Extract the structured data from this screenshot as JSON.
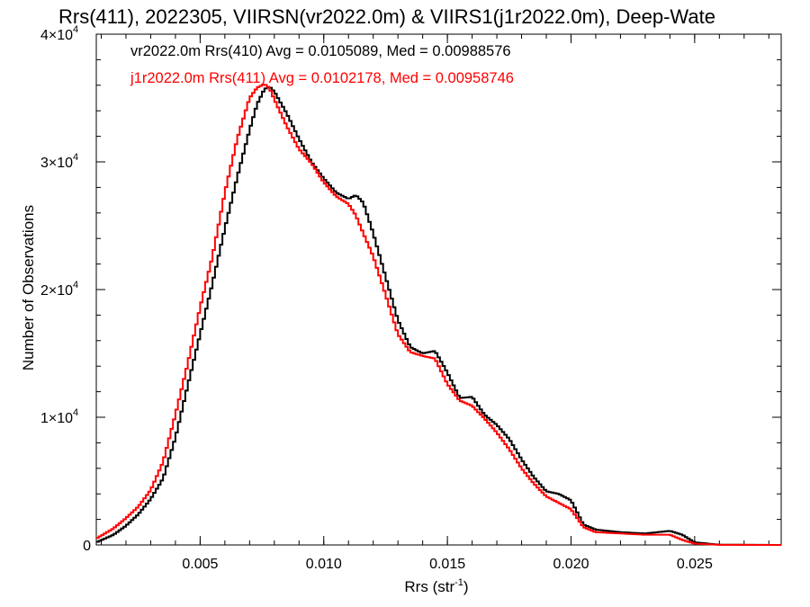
{
  "chart_data": {
    "type": "line",
    "title": "Rrs(411), 2022305, VIIRSN(vr2022.0m) & VIIRS1(j1r2022.0m), Deep-Wate",
    "xlabel_main": "Rrs (str",
    "xlabel_sup": "-1",
    "xlabel_end": ")",
    "ylabel": "Number of Observations",
    "xlim": [
      0.0008,
      0.0285
    ],
    "ylim": [
      0,
      40000
    ],
    "x_ticks": [
      {
        "value": 0.005,
        "label": "0.005"
      },
      {
        "value": 0.01,
        "label": "0.010"
      },
      {
        "value": 0.015,
        "label": "0.015"
      },
      {
        "value": 0.02,
        "label": "0.020"
      },
      {
        "value": 0.025,
        "label": "0.025"
      }
    ],
    "y_ticks": [
      {
        "value": 0,
        "label": "0",
        "sup": ""
      },
      {
        "value": 10000,
        "label": "1×10",
        "sup": "4"
      },
      {
        "value": 20000,
        "label": "2×10",
        "sup": "4"
      },
      {
        "value": 30000,
        "label": "3×10",
        "sup": "4"
      },
      {
        "value": 40000,
        "label": "4×10",
        "sup": "4"
      }
    ],
    "legend_placement": "top-left",
    "grid": false,
    "series": [
      {
        "name": "vr2022.0m Rrs(410) Avg = 0.0105089, Med = 0.00988576",
        "color": "#000000",
        "points": [
          [
            0.0008,
            200
          ],
          [
            0.0015,
            800
          ],
          [
            0.002,
            1500
          ],
          [
            0.0025,
            2400
          ],
          [
            0.003,
            3600
          ],
          [
            0.0035,
            5200
          ],
          [
            0.004,
            8400
          ],
          [
            0.0045,
            12500
          ],
          [
            0.005,
            16500
          ],
          [
            0.0055,
            20500
          ],
          [
            0.006,
            24800
          ],
          [
            0.0065,
            28800
          ],
          [
            0.007,
            32500
          ],
          [
            0.0073,
            34500
          ],
          [
            0.0076,
            35700
          ],
          [
            0.0078,
            35900
          ],
          [
            0.008,
            35500
          ],
          [
            0.0085,
            33800
          ],
          [
            0.009,
            31800
          ],
          [
            0.0095,
            30000
          ],
          [
            0.01,
            28700
          ],
          [
            0.0105,
            27600
          ],
          [
            0.011,
            27100
          ],
          [
            0.0113,
            27400
          ],
          [
            0.0116,
            26800
          ],
          [
            0.012,
            24400
          ],
          [
            0.0125,
            21000
          ],
          [
            0.013,
            17600
          ],
          [
            0.0135,
            15500
          ],
          [
            0.014,
            15000
          ],
          [
            0.0145,
            15200
          ],
          [
            0.015,
            13500
          ],
          [
            0.0155,
            11500
          ],
          [
            0.016,
            11600
          ],
          [
            0.0165,
            10200
          ],
          [
            0.017,
            9400
          ],
          [
            0.0175,
            8300
          ],
          [
            0.018,
            6700
          ],
          [
            0.0185,
            5300
          ],
          [
            0.019,
            4200
          ],
          [
            0.0195,
            4000
          ],
          [
            0.02,
            3500
          ],
          [
            0.0205,
            1600
          ],
          [
            0.021,
            1200
          ],
          [
            0.022,
            1000
          ],
          [
            0.023,
            900
          ],
          [
            0.024,
            1100
          ],
          [
            0.0245,
            800
          ],
          [
            0.025,
            200
          ],
          [
            0.026,
            20
          ],
          [
            0.0285,
            0
          ]
        ]
      },
      {
        "name": "j1r2022.0m Rrs(411) Avg = 0.0102178, Med = 0.00958746",
        "color": "#ff0000",
        "points": [
          [
            0.0008,
            500
          ],
          [
            0.0015,
            1300
          ],
          [
            0.002,
            2100
          ],
          [
            0.0025,
            3000
          ],
          [
            0.003,
            4300
          ],
          [
            0.0035,
            6500
          ],
          [
            0.004,
            10200
          ],
          [
            0.0045,
            14200
          ],
          [
            0.005,
            18600
          ],
          [
            0.0055,
            22600
          ],
          [
            0.006,
            27600
          ],
          [
            0.0065,
            31800
          ],
          [
            0.007,
            35000
          ],
          [
            0.0073,
            35800
          ],
          [
            0.0076,
            36100
          ],
          [
            0.0078,
            35800
          ],
          [
            0.008,
            34900
          ],
          [
            0.0085,
            32800
          ],
          [
            0.009,
            31000
          ],
          [
            0.0095,
            29900
          ],
          [
            0.01,
            28400
          ],
          [
            0.0105,
            27300
          ],
          [
            0.011,
            26700
          ],
          [
            0.0113,
            25800
          ],
          [
            0.0116,
            24400
          ],
          [
            0.012,
            22600
          ],
          [
            0.0125,
            19600
          ],
          [
            0.013,
            16500
          ],
          [
            0.0135,
            15100
          ],
          [
            0.014,
            14800
          ],
          [
            0.0145,
            14600
          ],
          [
            0.015,
            12600
          ],
          [
            0.0155,
            11300
          ],
          [
            0.016,
            10900
          ],
          [
            0.0165,
            9900
          ],
          [
            0.017,
            8800
          ],
          [
            0.0175,
            7500
          ],
          [
            0.018,
            6000
          ],
          [
            0.0185,
            4800
          ],
          [
            0.019,
            3800
          ],
          [
            0.0195,
            3300
          ],
          [
            0.02,
            2800
          ],
          [
            0.0205,
            1400
          ],
          [
            0.021,
            1000
          ],
          [
            0.022,
            900
          ],
          [
            0.023,
            800
          ],
          [
            0.024,
            800
          ],
          [
            0.0245,
            400
          ],
          [
            0.025,
            100
          ],
          [
            0.026,
            10
          ],
          [
            0.0285,
            0
          ]
        ]
      }
    ]
  }
}
